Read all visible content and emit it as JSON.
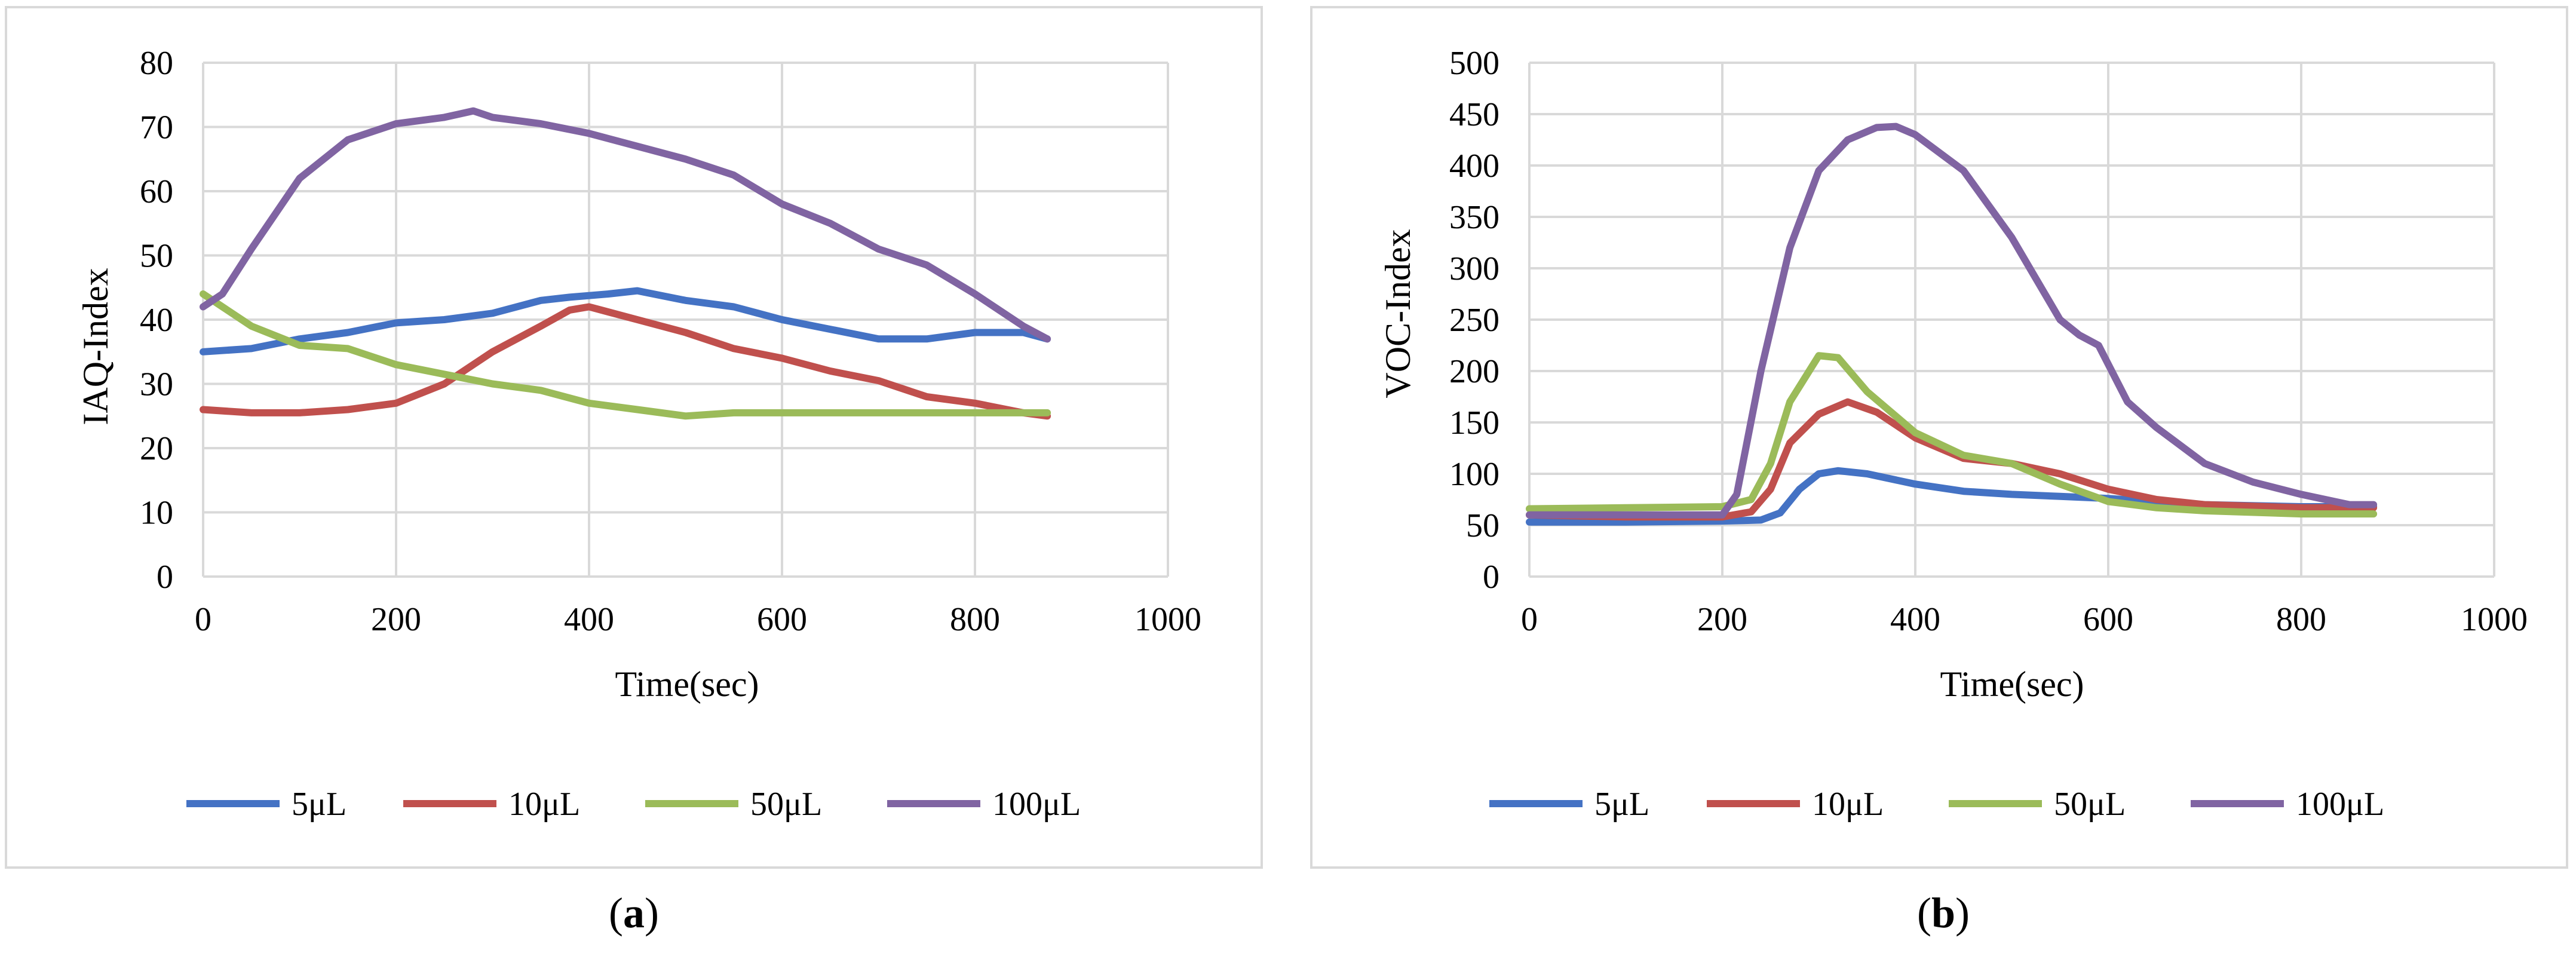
{
  "chart_data": [
    {
      "type": "line",
      "panel": "a",
      "caption_letter": "a",
      "xlabel": "Time(sec)",
      "ylabel": "IAQ-Index",
      "xlim": [
        0,
        1000
      ],
      "ylim": [
        0,
        80
      ],
      "xticks": [
        0,
        200,
        400,
        600,
        800,
        1000
      ],
      "yticks": [
        0,
        10,
        20,
        30,
        40,
        50,
        60,
        70,
        80
      ],
      "grid": true,
      "legend_position": "bottom",
      "series": [
        {
          "name": "5μL",
          "color": "#4472C4",
          "x": [
            0,
            50,
            100,
            150,
            200,
            250,
            300,
            350,
            380,
            420,
            450,
            500,
            550,
            600,
            650,
            700,
            750,
            800,
            850,
            875
          ],
          "y": [
            35,
            35.5,
            37,
            38,
            39.5,
            40,
            41,
            43,
            43.5,
            44,
            44.5,
            43,
            42,
            40,
            38.5,
            37,
            37,
            38,
            38,
            37
          ]
        },
        {
          "name": "10μL",
          "color": "#C0504D",
          "x": [
            0,
            50,
            100,
            150,
            200,
            250,
            300,
            350,
            380,
            400,
            450,
            500,
            550,
            600,
            650,
            700,
            750,
            800,
            850,
            875
          ],
          "y": [
            26,
            25.5,
            25.5,
            26,
            27,
            30,
            35,
            39,
            41.5,
            42,
            40,
            38,
            35.5,
            34,
            32,
            30.5,
            28,
            27,
            25.5,
            25
          ]
        },
        {
          "name": "50μL",
          "color": "#9BBB59",
          "x": [
            0,
            20,
            50,
            100,
            150,
            200,
            250,
            300,
            350,
            400,
            450,
            500,
            550,
            600,
            650,
            700,
            750,
            800,
            850,
            875
          ],
          "y": [
            44,
            42,
            39,
            36,
            35.5,
            33,
            31.5,
            30,
            29,
            27,
            26,
            25,
            25.5,
            25.5,
            25.5,
            25.5,
            25.5,
            25.5,
            25.5,
            25.5
          ]
        },
        {
          "name": "100μL",
          "color": "#8064A2",
          "x": [
            0,
            20,
            50,
            100,
            150,
            200,
            250,
            280,
            300,
            350,
            400,
            450,
            500,
            550,
            600,
            650,
            700,
            750,
            800,
            850,
            875
          ],
          "y": [
            42,
            44,
            51,
            62,
            68,
            70.5,
            71.5,
            72.5,
            71.5,
            70.5,
            69,
            67,
            65,
            62.5,
            58,
            55,
            51,
            48.5,
            44,
            39,
            37
          ]
        }
      ]
    },
    {
      "type": "line",
      "panel": "b",
      "caption_letter": "b",
      "xlabel": "Time(sec)",
      "ylabel": "VOC-Index",
      "xlim": [
        0,
        1000
      ],
      "ylim": [
        0,
        500
      ],
      "xticks": [
        0,
        200,
        400,
        600,
        800,
        1000
      ],
      "yticks": [
        0,
        50,
        100,
        150,
        200,
        250,
        300,
        350,
        400,
        450,
        500
      ],
      "grid": true,
      "legend_position": "bottom",
      "series": [
        {
          "name": "5μL",
          "color": "#4472C4",
          "x": [
            0,
            100,
            200,
            240,
            260,
            280,
            300,
            320,
            350,
            400,
            450,
            500,
            550,
            600,
            700,
            800,
            875
          ],
          "y": [
            53,
            53,
            54,
            55,
            62,
            85,
            100,
            103,
            100,
            90,
            83,
            80,
            78,
            76,
            70,
            68,
            68
          ]
        },
        {
          "name": "10μL",
          "color": "#C0504D",
          "x": [
            0,
            100,
            200,
            230,
            250,
            270,
            300,
            330,
            360,
            400,
            450,
            500,
            550,
            600,
            650,
            700,
            800,
            875
          ],
          "y": [
            60,
            58,
            58,
            63,
            85,
            130,
            158,
            170,
            160,
            135,
            115,
            110,
            100,
            85,
            75,
            70,
            67,
            67
          ]
        },
        {
          "name": "50μL",
          "color": "#9BBB59",
          "x": [
            0,
            100,
            200,
            230,
            250,
            270,
            300,
            320,
            350,
            400,
            450,
            500,
            550,
            600,
            650,
            700,
            800,
            875
          ],
          "y": [
            66,
            67,
            68,
            75,
            110,
            170,
            215,
            213,
            180,
            140,
            118,
            110,
            90,
            73,
            67,
            64,
            61,
            61
          ]
        },
        {
          "name": "100μL",
          "color": "#8064A2",
          "x": [
            0,
            100,
            200,
            215,
            240,
            270,
            300,
            330,
            360,
            380,
            400,
            450,
            500,
            550,
            570,
            590,
            620,
            650,
            700,
            750,
            800,
            850,
            875
          ],
          "y": [
            60,
            60,
            60,
            80,
            200,
            320,
            395,
            425,
            437,
            438,
            430,
            395,
            330,
            250,
            235,
            225,
            170,
            145,
            110,
            92,
            80,
            70,
            70
          ]
        }
      ]
    }
  ]
}
